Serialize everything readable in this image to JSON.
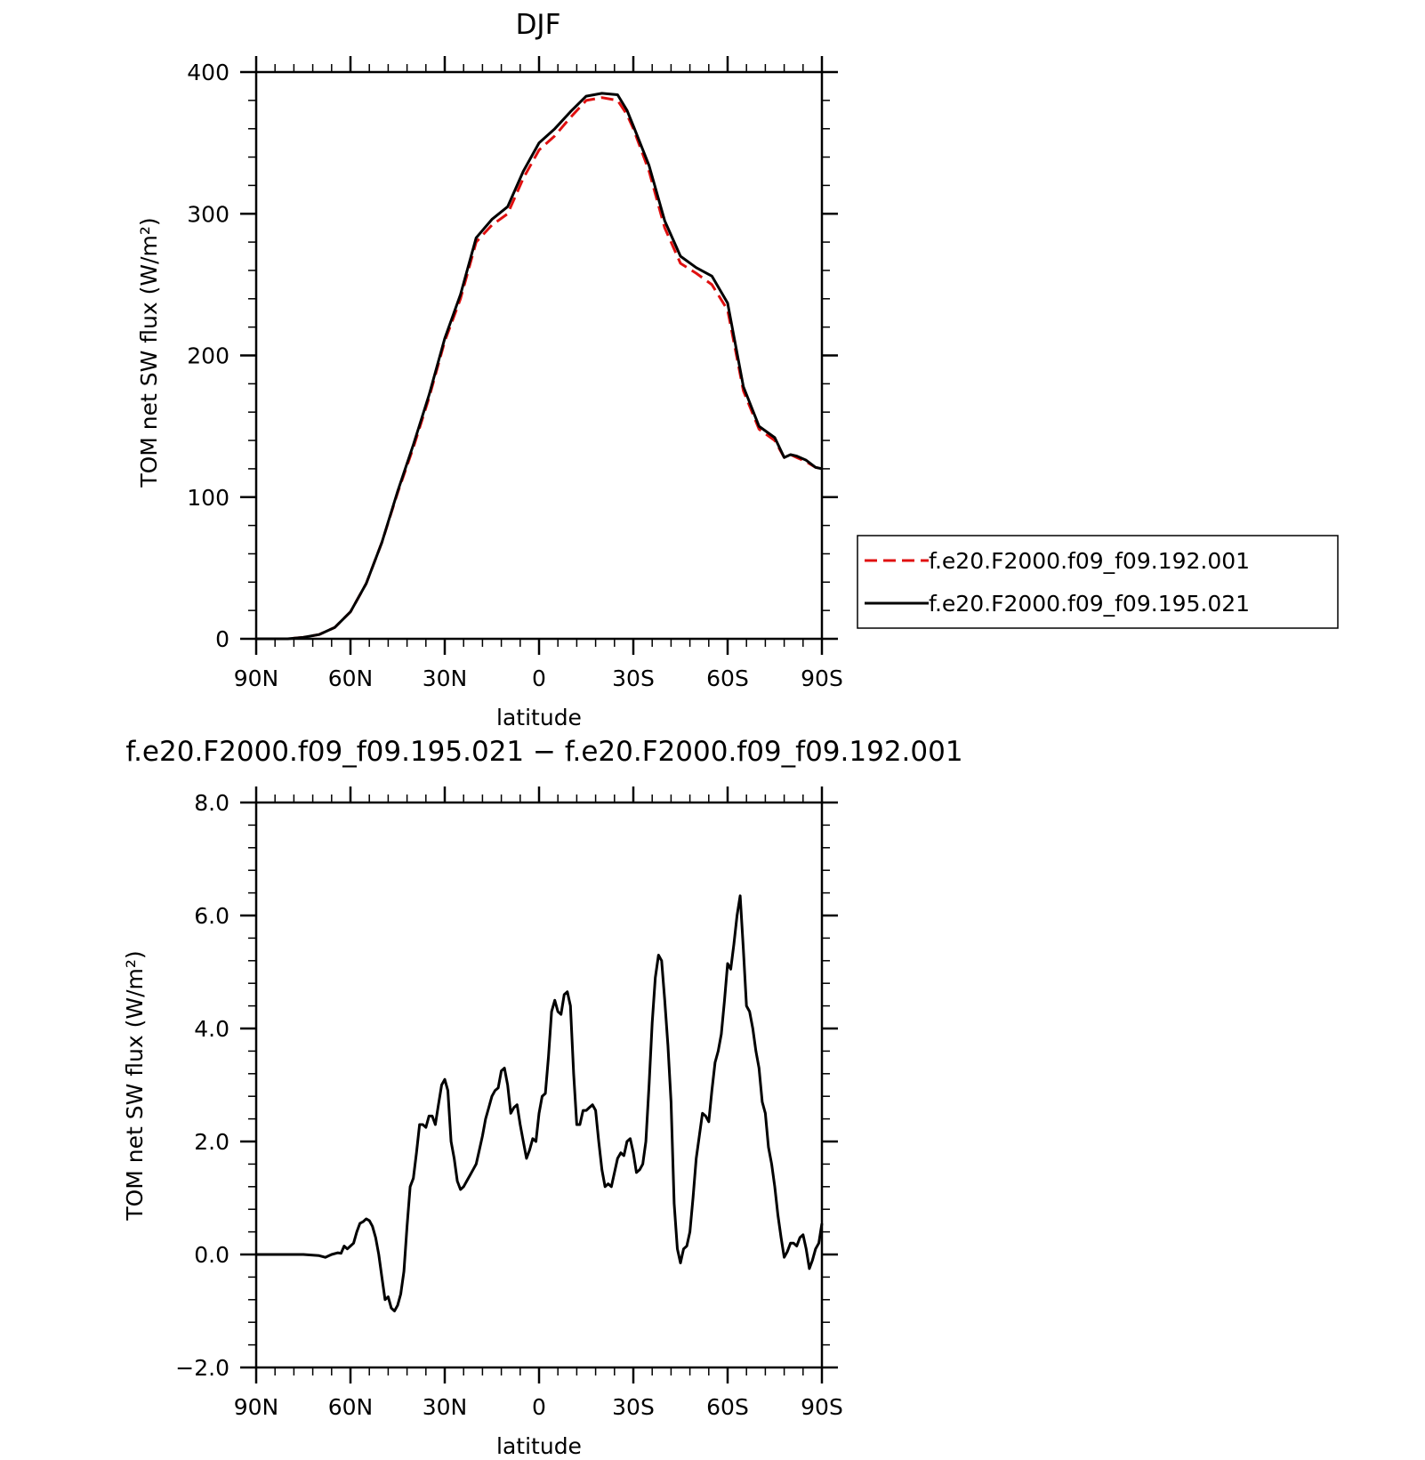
{
  "chart_data": [
    {
      "type": "line",
      "title": "DJF",
      "xlabel": "latitude",
      "ylabel": "TOM net SW flux (W/m²)",
      "xlim": [
        90,
        -90
      ],
      "ylim": [
        0,
        400
      ],
      "x_ticks": [
        90,
        60,
        30,
        0,
        -30,
        -60,
        -90
      ],
      "x_tick_labels": [
        "90N",
        "60N",
        "30N",
        "0",
        "30S",
        "60S",
        "90S"
      ],
      "y_ticks": [
        0,
        100,
        200,
        300,
        400
      ],
      "y_tick_labels": [
        "0",
        "100",
        "200",
        "300",
        "400"
      ],
      "legend_position": "right",
      "series": [
        {
          "name": "f.e20.F2000.f09_f09.192.001",
          "color": "#e01010",
          "dash": "dashed",
          "x": [
            90,
            85,
            80,
            75,
            70,
            65,
            60,
            55,
            50,
            45,
            40,
            35,
            30,
            25,
            20,
            15,
            10,
            5,
            0,
            -5,
            -10,
            -15,
            -20,
            -25,
            -28,
            -30,
            -35,
            -40,
            -45,
            -50,
            -55,
            -60,
            -65,
            -70,
            -75,
            -78,
            -80,
            -82,
            -85,
            -88,
            -90
          ],
          "values": [
            0,
            0,
            0,
            1,
            3,
            8,
            19,
            39,
            68,
            103,
            135,
            170,
            210,
            240,
            280,
            292,
            300,
            325,
            345,
            355,
            368,
            380,
            382,
            380,
            370,
            360,
            330,
            290,
            265,
            258,
            250,
            232,
            175,
            148,
            140,
            128,
            130,
            128,
            125,
            121,
            120
          ]
        },
        {
          "name": "f.e20.F2000.f09_f09.195.021",
          "color": "#000000",
          "dash": "solid",
          "x": [
            90,
            85,
            80,
            75,
            70,
            65,
            60,
            55,
            50,
            45,
            40,
            35,
            30,
            25,
            20,
            15,
            10,
            5,
            0,
            -5,
            -10,
            -15,
            -20,
            -25,
            -28,
            -30,
            -35,
            -40,
            -45,
            -50,
            -55,
            -60,
            -65,
            -70,
            -75,
            -78,
            -80,
            -82,
            -85,
            -88,
            -90
          ],
          "values": [
            0,
            0,
            0,
            1,
            3,
            8,
            19,
            39,
            68,
            104,
            137,
            172,
            212,
            243,
            283,
            296,
            305,
            330,
            350,
            360,
            372,
            383,
            385,
            384,
            373,
            362,
            334,
            295,
            270,
            262,
            256,
            237,
            178,
            150,
            142,
            128,
            130,
            129,
            126,
            121,
            120
          ]
        }
      ]
    },
    {
      "type": "line",
      "title": "f.e20.F2000.f09_f09.195.021 − f.e20.F2000.f09_f09.192.001",
      "xlabel": "latitude",
      "ylabel": "TOM net SW flux (W/m²)",
      "xlim": [
        90,
        -90
      ],
      "ylim": [
        -2,
        8
      ],
      "x_ticks": [
        90,
        60,
        30,
        0,
        -30,
        -60,
        -90
      ],
      "x_tick_labels": [
        "90N",
        "60N",
        "30N",
        "0",
        "30S",
        "60S",
        "90S"
      ],
      "y_ticks": [
        -2,
        0,
        2,
        4,
        6,
        8
      ],
      "y_tick_labels": [
        "−2.0",
        "0.0",
        "2.0",
        "4.0",
        "6.0",
        "8.0"
      ],
      "series": [
        {
          "color": "#000000",
          "x": [
            90,
            85,
            80,
            75,
            70,
            68,
            66,
            64,
            63,
            62,
            61,
            60,
            59,
            58,
            57,
            56,
            55,
            54,
            53,
            52,
            51,
            50,
            49,
            48,
            47,
            46,
            45,
            44,
            43,
            42,
            41,
            40,
            39,
            38,
            37,
            36,
            35,
            34,
            33,
            32,
            31,
            30,
            29,
            28,
            27,
            26,
            25,
            24,
            23,
            22,
            21,
            20,
            19,
            18,
            17,
            16,
            15,
            14,
            13,
            12,
            11,
            10,
            9,
            8,
            7,
            6,
            5,
            4,
            3,
            2,
            1,
            0,
            -1,
            -2,
            -3,
            -4,
            -5,
            -6,
            -7,
            -8,
            -9,
            -10,
            -11,
            -12,
            -13,
            -14,
            -15,
            -16,
            -17,
            -18,
            -19,
            -20,
            -21,
            -22,
            -23,
            -24,
            -25,
            -26,
            -27,
            -28,
            -29,
            -30,
            -31,
            -32,
            -33,
            -34,
            -35,
            -36,
            -37,
            -38,
            -39,
            -40,
            -41,
            -42,
            -43,
            -44,
            -45,
            -46,
            -47,
            -48,
            -49,
            -50,
            -51,
            -52,
            -53,
            -54,
            -55,
            -56,
            -57,
            -58,
            -59,
            -60,
            -61,
            -62,
            -63,
            -64,
            -65,
            -66,
            -67,
            -68,
            -69,
            -70,
            -71,
            -72,
            -73,
            -74,
            -75,
            -76,
            -77,
            -78,
            -79,
            -80,
            -81,
            -82,
            -83,
            -84,
            -85,
            -86,
            -87,
            -88,
            -89,
            -90
          ],
          "values": [
            0,
            0,
            0,
            0,
            -0.02,
            -0.05,
            0,
            0.03,
            0.02,
            0.15,
            0.1,
            0.15,
            0.2,
            0.4,
            0.55,
            0.58,
            0.63,
            0.6,
            0.5,
            0.3,
            0,
            -0.4,
            -0.8,
            -0.75,
            -0.95,
            -1.0,
            -0.9,
            -0.7,
            -0.3,
            0.5,
            1.2,
            1.35,
            1.8,
            2.3,
            2.3,
            2.25,
            2.45,
            2.45,
            2.3,
            2.65,
            3.0,
            3.1,
            2.9,
            2.0,
            1.7,
            1.3,
            1.15,
            1.2,
            1.3,
            1.4,
            1.5,
            1.6,
            1.85,
            2.1,
            2.4,
            2.6,
            2.8,
            2.9,
            2.95,
            3.25,
            3.3,
            3.0,
            2.5,
            2.6,
            2.65,
            2.3,
            2.0,
            1.7,
            1.85,
            2.05,
            2.0,
            2.5,
            2.8,
            2.85,
            3.5,
            4.3,
            4.5,
            4.3,
            4.25,
            4.6,
            4.65,
            4.4,
            3.2,
            2.3,
            2.3,
            2.55,
            2.55,
            2.6,
            2.65,
            2.55,
            2.0,
            1.5,
            1.2,
            1.25,
            1.2,
            1.45,
            1.7,
            1.8,
            1.75,
            2.0,
            2.05,
            1.8,
            1.45,
            1.5,
            1.6,
            2.0,
            3.0,
            4.1,
            4.9,
            5.3,
            5.2,
            4.5,
            3.7,
            2.7,
            0.9,
            0.1,
            -0.15,
            0.1,
            0.15,
            0.4,
            1.0,
            1.7,
            2.1,
            2.5,
            2.45,
            2.35,
            2.9,
            3.4,
            3.6,
            3.9,
            4.5,
            5.15,
            5.05,
            5.5,
            6.0,
            6.35,
            5.4,
            4.4,
            4.3,
            4.0,
            3.6,
            3.3,
            2.7,
            2.5,
            1.9,
            1.6,
            1.2,
            0.7,
            0.3,
            -0.05,
            0.05,
            0.2,
            0.2,
            0.15,
            0.3,
            0.35,
            0.1,
            -0.25,
            -0.1,
            0.1,
            0.2,
            0.55
          ]
        }
      ]
    }
  ]
}
